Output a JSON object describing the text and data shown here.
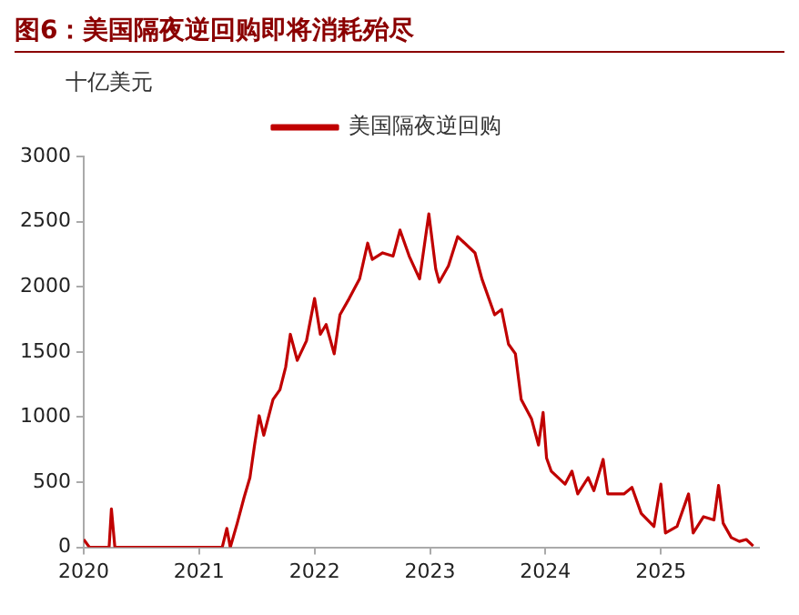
{
  "chart_data": {
    "type": "line",
    "title": "图6：美国隔夜逆回购即将消耗殆尽",
    "ylabel": "十亿美元",
    "x": [
      2020.0,
      2020.05,
      2020.22,
      2020.24,
      2020.27,
      2021.2,
      2021.24,
      2021.27,
      2021.33,
      2021.39,
      2021.44,
      2021.48,
      2021.52,
      2021.56,
      2021.64,
      2021.7,
      2021.75,
      2021.79,
      2021.85,
      2021.93,
      2022.0,
      2022.05,
      2022.1,
      2022.17,
      2022.22,
      2022.3,
      2022.39,
      2022.46,
      2022.5,
      2022.59,
      2022.68,
      2022.74,
      2022.82,
      2022.91,
      2022.99,
      2023.05,
      2023.08,
      2023.16,
      2023.24,
      2023.39,
      2023.45,
      2023.56,
      2023.62,
      2023.68,
      2023.74,
      2023.79,
      2023.88,
      2023.94,
      2023.98,
      2024.01,
      2024.05,
      2024.17,
      2024.23,
      2024.28,
      2024.37,
      2024.42,
      2024.5,
      2024.54,
      2024.68,
      2024.75,
      2024.83,
      2024.94,
      2025.0,
      2025.04,
      2025.14,
      2025.24,
      2025.28,
      2025.37,
      2025.46,
      2025.5,
      2025.54,
      2025.61,
      2025.68,
      2025.74,
      2025.8
    ],
    "series": [
      {
        "name": "美国隔夜逆回购",
        "color": "#c00000",
        "values": [
          60,
          0,
          0,
          295,
          0,
          0,
          145,
          0,
          185,
          385,
          535,
          785,
          1010,
          860,
          1135,
          1210,
          1385,
          1635,
          1435,
          1585,
          1910,
          1635,
          1710,
          1485,
          1785,
          1910,
          2060,
          2335,
          2210,
          2260,
          2235,
          2435,
          2235,
          2060,
          2560,
          2135,
          2035,
          2160,
          2385,
          2260,
          2060,
          1785,
          1825,
          1560,
          1485,
          1135,
          985,
          785,
          1035,
          685,
          585,
          485,
          585,
          410,
          535,
          435,
          675,
          410,
          410,
          460,
          260,
          160,
          485,
          110,
          160,
          410,
          110,
          235,
          210,
          475,
          185,
          75,
          45,
          60,
          10
        ]
      }
    ],
    "xlim": [
      2020,
      2025.85
    ],
    "xticks": [
      2020,
      2021,
      2022,
      2023,
      2024,
      2025
    ],
    "ylim": [
      0,
      3000
    ],
    "yticks": [
      0,
      500,
      1000,
      1500,
      2000,
      2500,
      3000
    ],
    "legend": "top",
    "marker": "none",
    "line_style": "solid"
  }
}
